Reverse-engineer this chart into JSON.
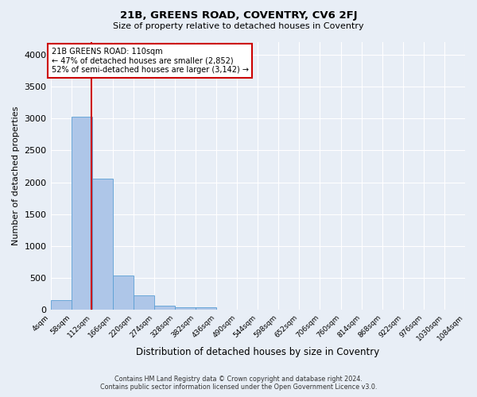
{
  "title": "21B, GREENS ROAD, COVENTRY, CV6 2FJ",
  "subtitle": "Size of property relative to detached houses in Coventry",
  "xlabel": "Distribution of detached houses by size in Coventry",
  "ylabel": "Number of detached properties",
  "footer_line1": "Contains HM Land Registry data © Crown copyright and database right 2024.",
  "footer_line2": "Contains public sector information licensed under the Open Government Licence v3.0.",
  "annotation_line1": "21B GREENS ROAD: 110sqm",
  "annotation_line2": "← 47% of detached houses are smaller (2,852)",
  "annotation_line3": "52% of semi-detached houses are larger (3,142) →",
  "property_size": 110,
  "bar_edges": [
    4,
    58,
    112,
    166,
    220,
    274,
    328,
    382,
    436,
    490,
    544,
    598,
    652,
    706,
    760,
    814,
    868,
    922,
    976,
    1030,
    1084
  ],
  "bar_heights": [
    150,
    3020,
    2050,
    545,
    230,
    70,
    45,
    45,
    0,
    0,
    0,
    0,
    0,
    0,
    0,
    0,
    0,
    0,
    0,
    0
  ],
  "bar_color": "#aec6e8",
  "bar_edge_color": "#5a9fd4",
  "vline_color": "#cc0000",
  "vline_x": 110,
  "annotation_box_color": "#cc0000",
  "background_color": "#e8eef6",
  "grid_color": "#ffffff",
  "ylim": [
    0,
    4200
  ],
  "yticks": [
    0,
    500,
    1000,
    1500,
    2000,
    2500,
    3000,
    3500,
    4000
  ]
}
